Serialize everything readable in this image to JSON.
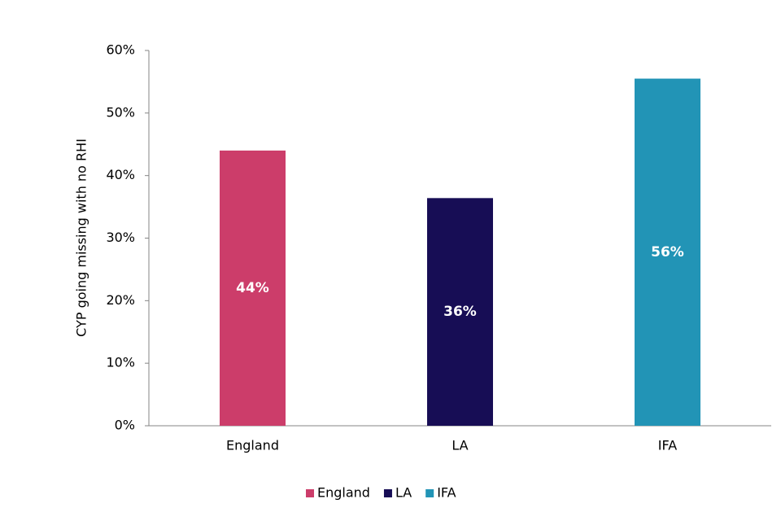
{
  "chart_data": {
    "type": "bar",
    "y_label": "CYP going missing with no RHI",
    "categories": [
      "England",
      "LA",
      "IFA"
    ],
    "values": [
      44,
      36.4,
      55.5
    ],
    "value_labels": [
      "44%",
      "36%",
      "56%"
    ],
    "colors": [
      "#cc3d6a",
      "#170d55",
      "#2294b6"
    ],
    "ylim": [
      0,
      60
    ],
    "yticks": [
      {
        "value": 0,
        "label": "0%"
      },
      {
        "value": 10,
        "label": "10%"
      },
      {
        "value": 20,
        "label": "20%"
      },
      {
        "value": 30,
        "label": "30%"
      },
      {
        "value": 40,
        "label": "40%"
      },
      {
        "value": 50,
        "label": "50%"
      },
      {
        "value": 60,
        "label": "60%"
      }
    ],
    "grid": false,
    "legend": "bottom"
  }
}
